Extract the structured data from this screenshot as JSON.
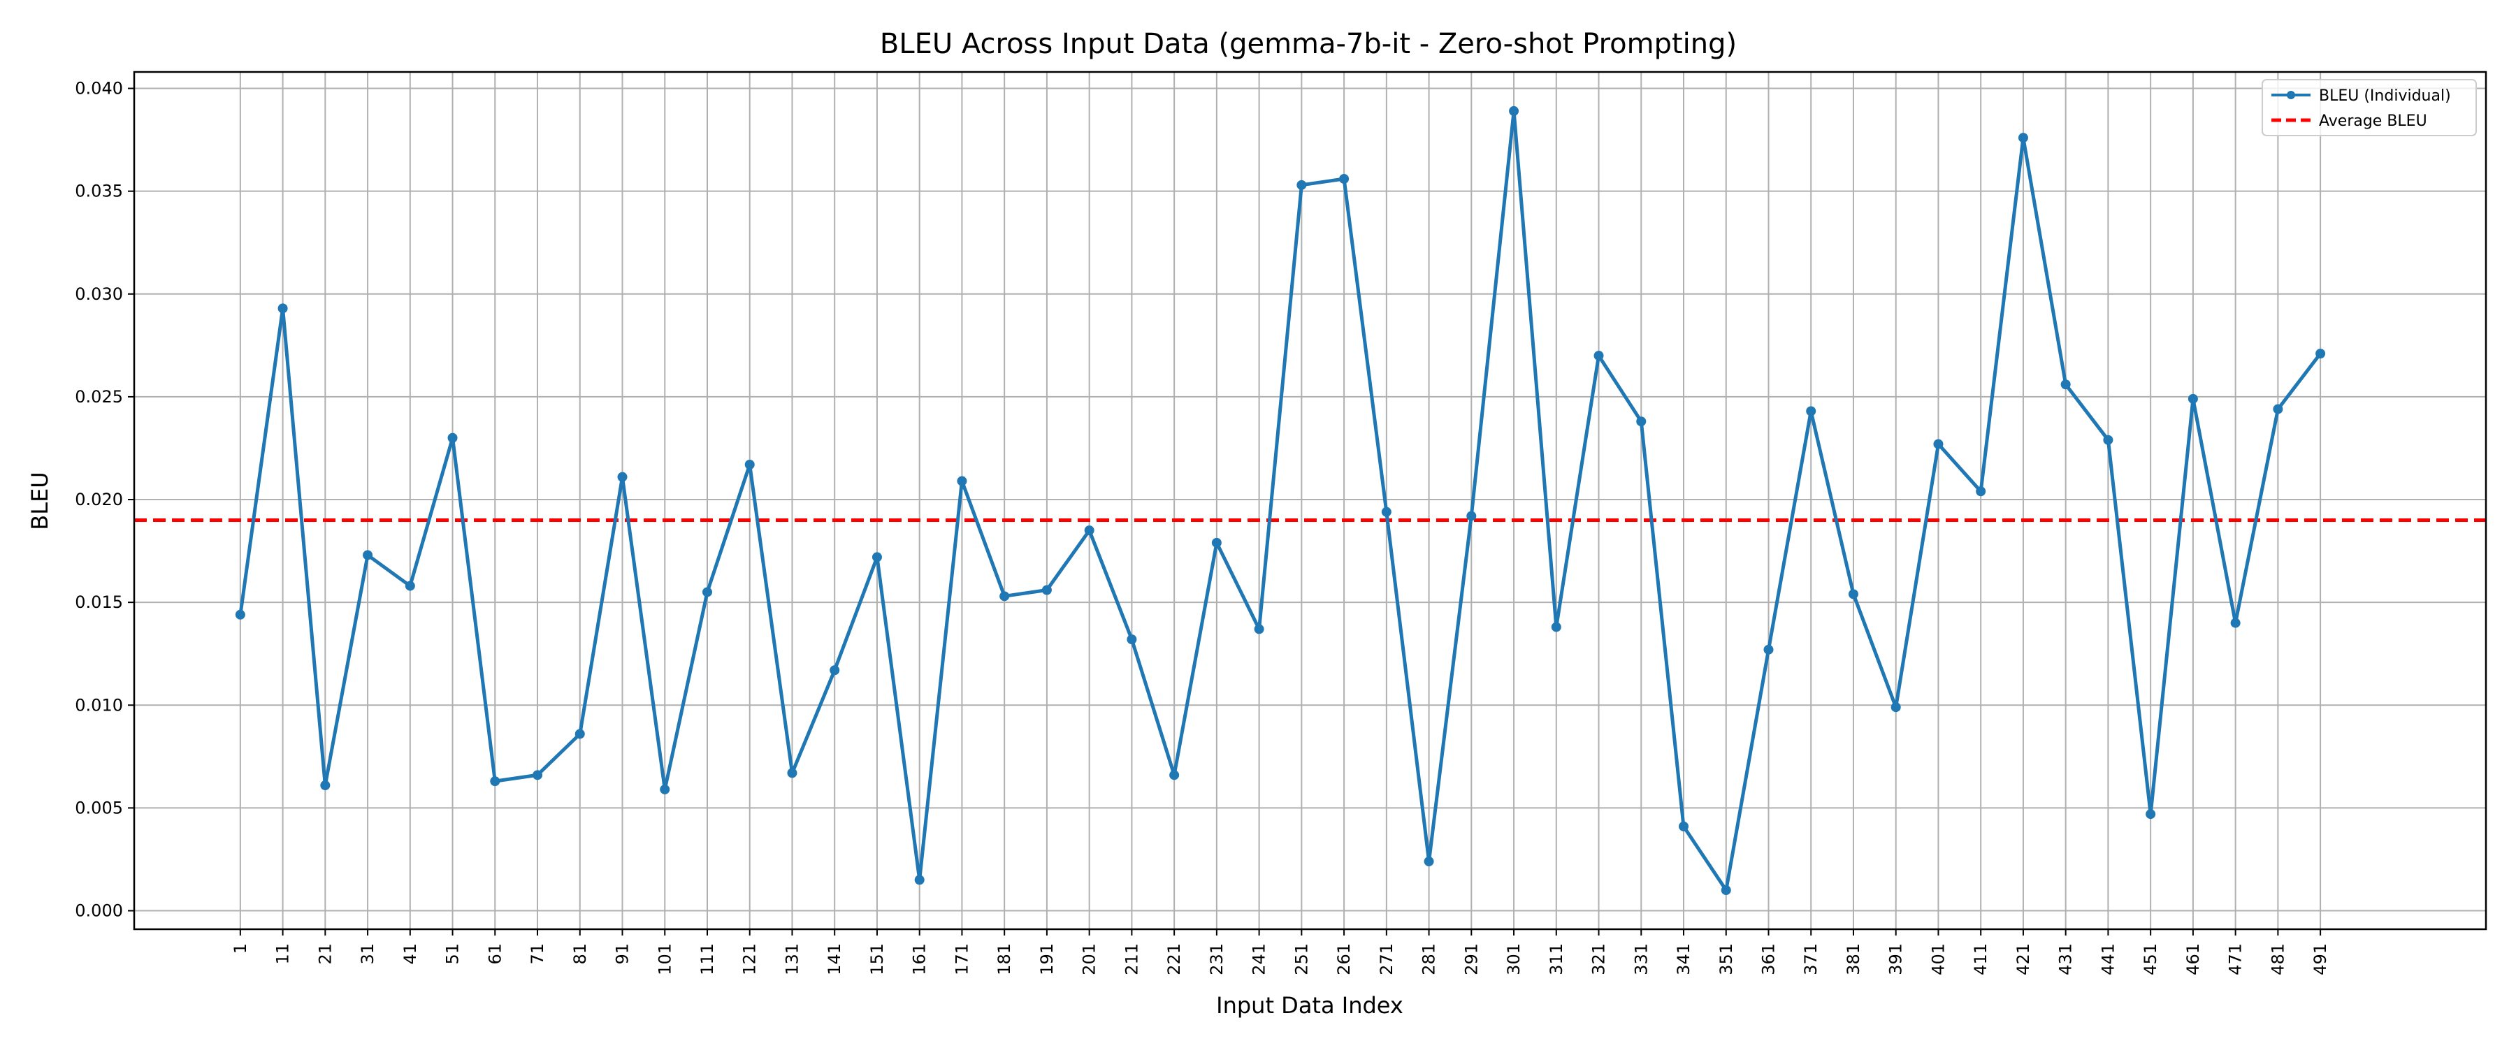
{
  "chart_data": {
    "type": "line",
    "title": "BLEU Across Input Data (gemma-7b-it - Zero-shot Prompting)",
    "xlabel": "Input Data Index",
    "ylabel": "BLEU",
    "x": [
      1,
      11,
      21,
      31,
      41,
      51,
      61,
      71,
      81,
      91,
      101,
      111,
      121,
      131,
      141,
      151,
      161,
      171,
      181,
      191,
      201,
      211,
      221,
      231,
      241,
      251,
      261,
      271,
      281,
      291,
      301,
      311,
      321,
      331,
      341,
      351,
      361,
      371,
      381,
      391,
      401,
      411,
      421,
      431,
      441,
      451,
      461,
      471,
      481,
      491
    ],
    "xticks": [
      "1",
      "11",
      "21",
      "31",
      "41",
      "51",
      "61",
      "71",
      "81",
      "91",
      "101",
      "111",
      "121",
      "131",
      "141",
      "151",
      "161",
      "171",
      "181",
      "191",
      "201",
      "211",
      "221",
      "231",
      "241",
      "251",
      "261",
      "271",
      "281",
      "291",
      "301",
      "311",
      "321",
      "331",
      "341",
      "351",
      "361",
      "371",
      "381",
      "391",
      "401",
      "411",
      "421",
      "431",
      "441",
      "451",
      "461",
      "471",
      "481",
      "491"
    ],
    "series": [
      {
        "name": "BLEU (Individual)",
        "color": "#1f77b4",
        "style": "solid-with-markers",
        "values": [
          0.0144,
          0.0293,
          0.0061,
          0.0173,
          0.0158,
          0.023,
          0.0063,
          0.0066,
          0.0086,
          0.0211,
          0.0059,
          0.0155,
          0.0217,
          0.0067,
          0.0117,
          0.0172,
          0.0015,
          0.0209,
          0.0153,
          0.0156,
          0.0185,
          0.0132,
          0.0066,
          0.0179,
          0.0137,
          0.0353,
          0.0356,
          0.0194,
          0.0024,
          0.0192,
          0.0389,
          0.0138,
          0.027,
          0.0238,
          0.0041,
          0.001,
          0.0127,
          0.0243,
          0.0154,
          0.0099,
          0.0227,
          0.0204,
          0.0376,
          0.0256,
          0.0229,
          0.0047,
          0.0249,
          0.014,
          0.0244,
          0.0271
        ]
      },
      {
        "name": "Average BLEU",
        "color": "#ff0000",
        "style": "dashed",
        "value": 0.019
      }
    ],
    "yticks": [
      "0.000",
      "0.005",
      "0.010",
      "0.015",
      "0.020",
      "0.025",
      "0.030",
      "0.035",
      "0.040"
    ],
    "ylim": [
      -0.0009,
      0.0408
    ],
    "xlim": [
      -24,
      530
    ],
    "grid": true,
    "legend_position": "top-right"
  }
}
